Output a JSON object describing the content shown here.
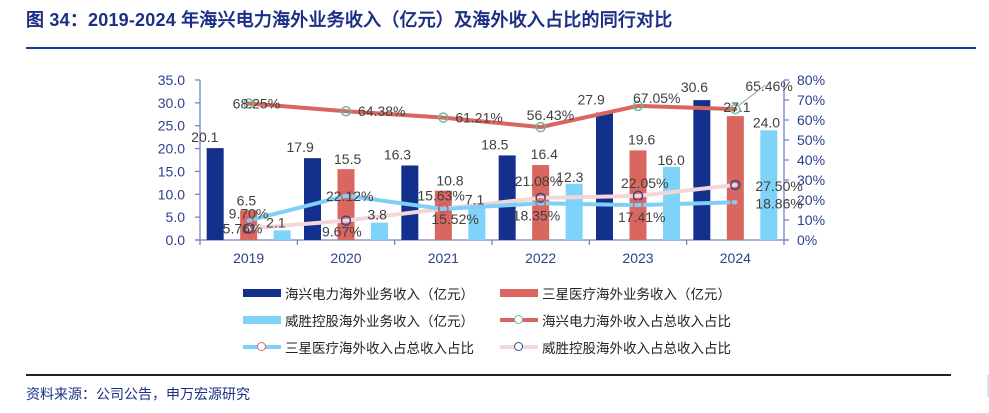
{
  "title": "图 34：2019-2024 年海兴电力海外业务收入（亿元）及海外收入占比的同行对比",
  "source": "资料来源：公司公告，申万宏源研究",
  "colors": {
    "title": "#1b2f86",
    "haixing_bar": "#12308c",
    "samsung_bar": "#d9665f",
    "weisheng_bar": "#80d3f8",
    "haixing_line": "#d9665f",
    "haixing_marker": "#5bbfaa",
    "samsung_line": "#7fd0f7",
    "samsung_marker": "#d9665f",
    "weisheng_line": "#f5d6d8",
    "weisheng_marker": "#3b4487",
    "axis": "#6f86cc",
    "label": "#404040"
  },
  "chart_data": {
    "type": "bar+line",
    "title": "2019-2024 年海兴电力海外业务收入（亿元）及海外收入占比的同行对比",
    "categories": [
      "2019",
      "2020",
      "2021",
      "2022",
      "2023",
      "2024"
    ],
    "left_axis": {
      "ylim": [
        0,
        35
      ],
      "ticks": [
        "0.0",
        "5.0",
        "10.0",
        "15.0",
        "20.0",
        "25.0",
        "30.0",
        "35.0"
      ]
    },
    "right_axis": {
      "ylim": [
        0,
        80
      ],
      "ticks": [
        "0%",
        "10%",
        "20%",
        "30%",
        "40%",
        "50%",
        "60%",
        "70%",
        "80%"
      ]
    },
    "bar_series": [
      {
        "name": "海兴电力海外业务收入（亿元）",
        "values": [
          20.1,
          17.9,
          16.3,
          18.5,
          27.9,
          30.6
        ],
        "labels": [
          "20.1",
          "17.9",
          "16.3",
          "18.5",
          "27.9",
          "30.6"
        ]
      },
      {
        "name": "三星医疗海外业务收入（亿元）",
        "values": [
          6.5,
          15.5,
          10.8,
          16.4,
          19.6,
          27.1
        ],
        "labels": [
          "6.5",
          "15.5",
          "10.8",
          "16.4",
          "19.6",
          "27.1"
        ]
      },
      {
        "name": "威胜控股海外业务收入（亿元）",
        "values": [
          2.1,
          3.8,
          7.1,
          12.3,
          16.0,
          24.0
        ],
        "labels": [
          "2.1",
          "3.8",
          "7.1",
          "12.3",
          "16.0",
          "24.0"
        ]
      }
    ],
    "line_series": [
      {
        "name": "海兴电力海外收入占总收入占比",
        "values": [
          68.25,
          64.38,
          61.21,
          56.43,
          67.05,
          65.46
        ],
        "labels": [
          "68.25%",
          "64.38%",
          "61.21%",
          "56.43%",
          "67.05%",
          "65.46%"
        ]
      },
      {
        "name": "三星医疗海外收入占总收入占比",
        "values": [
          9.7,
          22.12,
          15.52,
          18.35,
          17.41,
          18.86
        ],
        "labels": [
          "9.70%",
          "22.12%",
          "15.52%",
          "18.35%",
          "17.41%",
          "18.86%"
        ]
      },
      {
        "name": "威胜控股海外收入占总收入占比",
        "values": [
          5.76,
          9.67,
          15.63,
          21.08,
          22.05,
          27.5
        ],
        "labels": [
          "5.76%",
          "9.67%",
          "15.63%",
          "21.08%",
          "22.05%",
          "27.50%"
        ]
      }
    ],
    "legend": [
      "海兴电力海外业务收入（亿元）",
      "三星医疗海外业务收入（亿元）",
      "威胜控股海外业务收入（亿元）",
      "海兴电力海外收入占总收入占比",
      "三星医疗海外收入占总收入占比",
      "威胜控股海外收入占总收入占比"
    ],
    "legend_position": "bottom",
    "grid": false
  }
}
